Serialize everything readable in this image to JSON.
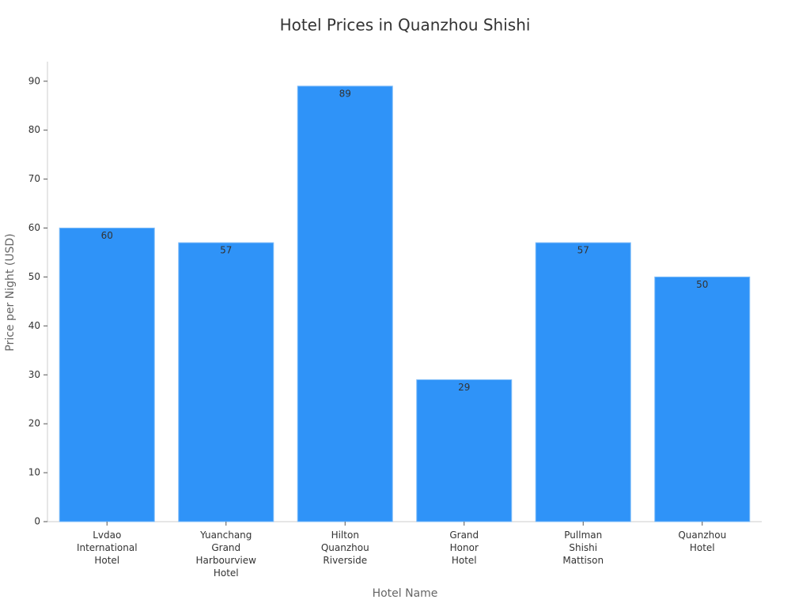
{
  "chart_data": {
    "type": "bar",
    "title": "Hotel Prices in Quanzhou Shishi",
    "x_label": "Hotel Name",
    "y_label": "Price per Night (USD)",
    "categories": [
      "Lvdao International Hotel",
      "Yuanchang Grand Harbourview Hotel",
      "Hilton Quanzhou Riverside",
      "Grand Honor Hotel",
      "Pullman Shishi Mattison",
      "Quanzhou Hotel"
    ],
    "values": [
      60,
      57,
      89,
      29,
      57,
      50
    ],
    "color": "#2f93f8",
    "ylim": [
      0,
      94
    ],
    "yticks": [
      0,
      10,
      20,
      30,
      40,
      50,
      60,
      70,
      80,
      90
    ],
    "grid": false
  }
}
